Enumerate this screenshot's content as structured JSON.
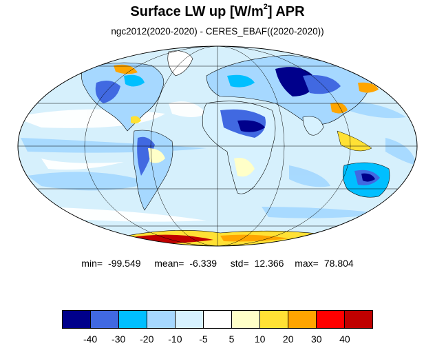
{
  "header": {
    "title_main": "Surface LW up [W/m",
    "title_sup": "2",
    "title_end": "]  APR",
    "subtitle": "ngc2012(2020-2020) - CERES_EBAF((2020-2020))"
  },
  "map": {
    "projection": "Mollweide",
    "field": "difference (model - observation)",
    "ocean_background": "#d6f0fc",
    "coastline_color": "#000000"
  },
  "stats": {
    "min_label": "min=",
    "min": "-99.549",
    "mean_label": "mean=",
    "mean": "-6.339",
    "std_label": "std=",
    "std": "12.366",
    "max_label": "max=",
    "max": "78.804"
  },
  "colorbar": {
    "colors": [
      "#00008b",
      "#4169e1",
      "#00bfff",
      "#a6d8ff",
      "#d7f2ff",
      "#ffffff",
      "#ffffc8",
      "#ffe135",
      "#ffa500",
      "#ff0000",
      "#c00000"
    ],
    "labels": [
      "-40",
      "-30",
      "-20",
      "-10",
      "-5",
      "5",
      "10",
      "20",
      "30",
      "40"
    ]
  }
}
